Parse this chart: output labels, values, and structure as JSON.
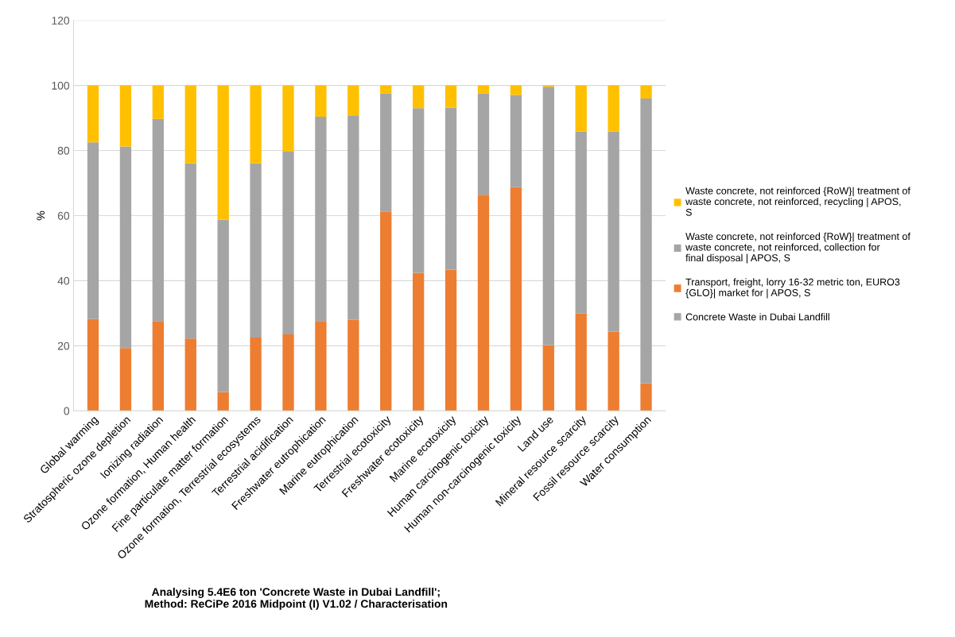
{
  "chart_data": {
    "type": "bar",
    "stacked": true,
    "ylabel": "%",
    "ylim": [
      0,
      120
    ],
    "yticks": [
      0,
      20,
      40,
      60,
      80,
      100,
      120
    ],
    "grid": "y",
    "legend": "right",
    "categories": [
      "Global warming",
      "Stratospheric ozone depletion",
      "Ionizing radiation",
      "Ozone formation, Human health",
      "Fine particulate matter formation",
      "Ozone formation, Terrestrial ecosystems",
      "Terrestrial acidification",
      "Freshwater eutrophication",
      "Marine eutrophication",
      "Terrestrial ecotoxicity",
      "Freshwater ecotoxicity",
      "Marine ecotoxicity",
      "Human carcinogenic toxicity",
      "Human non-carcinogenic toxicity",
      "Land use",
      "Mineral resource scarcity",
      "Fossil resource scarcity",
      "Water consumption"
    ],
    "series": [
      {
        "name": "Concrete Waste in Dubai Landfill",
        "color": "#a5a5a5",
        "values": [
          0,
          0,
          0,
          0,
          0,
          0,
          0,
          0,
          0,
          0,
          0,
          0,
          0,
          0,
          0,
          0,
          0,
          0
        ]
      },
      {
        "name": "Transport, freight, lorry 16-32 metric ton, EURO3 {GLO}| market for | APOS, S",
        "color": "#ed7d31",
        "values": [
          28.2,
          19.3,
          27.6,
          22.2,
          5.8,
          22.5,
          23.5,
          27.6,
          28,
          61.3,
          42.4,
          43.4,
          66.4,
          68.7,
          20.2,
          29.9,
          24.3,
          8.5
        ]
      },
      {
        "name": "Waste concrete, not reinforced {RoW}| treatment of waste concrete, not reinforced, collection for final disposal | APOS, S",
        "color": "#a5a5a5",
        "values": [
          54.3,
          61.9,
          62.1,
          53.9,
          52.9,
          53.6,
          56.3,
          62.8,
          62.8,
          36.2,
          50.6,
          49.8,
          31.1,
          28.4,
          79.4,
          55.9,
          61.5,
          87.5
        ]
      },
      {
        "name": "Waste concrete, not reinforced {RoW}| treatment of waste concrete, not reinforced, recycling | APOS, S",
        "color": "#ffc000",
        "values": [
          17.5,
          18.8,
          10.3,
          23.9,
          41.3,
          23.9,
          20.2,
          9.6,
          9.2,
          2.5,
          7,
          6.8,
          2.5,
          2.9,
          0.4,
          14.2,
          14.2,
          4
        ]
      }
    ],
    "annotations": [
      "Analysing 5.4E6 ton 'Concrete Waste in Dubai Landfill';\nMethod: ReCiPe 2016 Midpoint (I) V1.02 / Characterisation"
    ]
  }
}
